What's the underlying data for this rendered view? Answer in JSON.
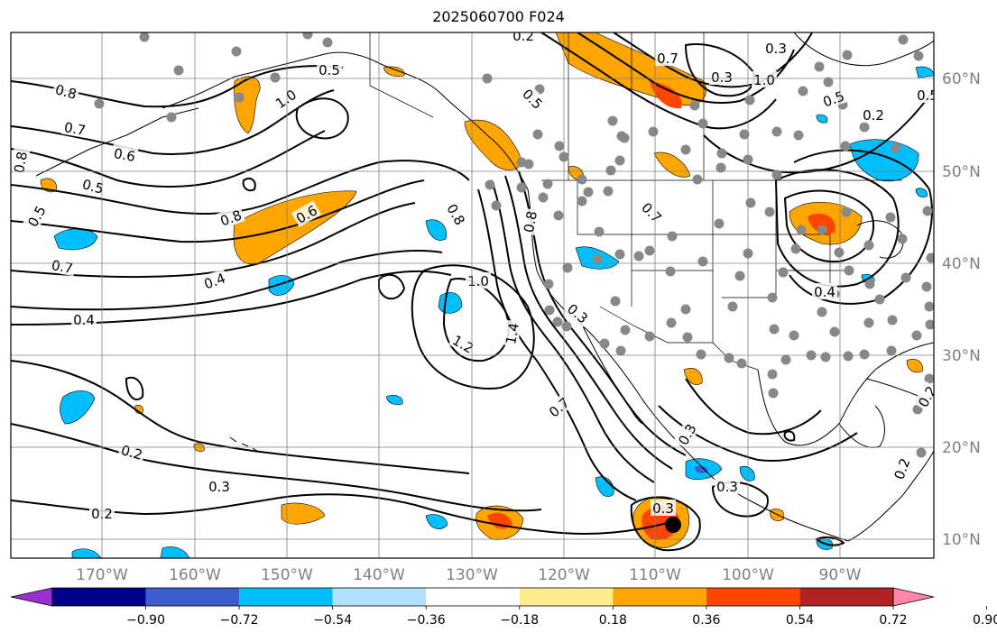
{
  "title": "2025060700 F024",
  "lon_labels": [
    "170°W",
    "160°W",
    "150°W",
    "140°W",
    "130°W",
    "120°W",
    "110°W",
    "100°W",
    "90°W"
  ],
  "lat_labels": [
    "60°N",
    "50°N",
    "40°N",
    "30°N",
    "20°N",
    "10°N"
  ],
  "colorbar": {
    "ticks": [
      "−0.90",
      "−0.72",
      "−0.54",
      "−0.36",
      "−0.18",
      "0.18",
      "0.36",
      "0.54",
      "0.72",
      "0.90"
    ],
    "colors": [
      "#9b30d0",
      "#00008b",
      "#3a5fcd",
      "#00bfff",
      "#b0e2ff",
      "#ffffff",
      "#ffec8b",
      "#ffa500",
      "#ff4500",
      "#b22222",
      "#ff88aa"
    ]
  },
  "contour_labels": [
    {
      "text": "0.5"
    },
    {
      "text": "0.8"
    },
    {
      "text": "1.0"
    },
    {
      "text": "0.7"
    },
    {
      "text": "0.6"
    },
    {
      "text": "0.5"
    },
    {
      "text": "0.8"
    },
    {
      "text": "0.5"
    },
    {
      "text": "0.7"
    },
    {
      "text": "0.8"
    },
    {
      "text": "0.6"
    },
    {
      "text": "0.4"
    },
    {
      "text": "0.4"
    },
    {
      "text": "0.8"
    },
    {
      "text": "0.2"
    },
    {
      "text": "0.5"
    },
    {
      "text": "1.0"
    },
    {
      "text": "1.2"
    },
    {
      "text": "1.4"
    },
    {
      "text": "0.3"
    },
    {
      "text": "0.7"
    },
    {
      "text": "0.3"
    },
    {
      "text": "0.2"
    },
    {
      "text": "0.3"
    },
    {
      "text": "0.2"
    },
    {
      "text": "0.8"
    },
    {
      "text": "0.7"
    },
    {
      "text": "0.3"
    },
    {
      "text": "1.0"
    },
    {
      "text": "0.5"
    },
    {
      "text": "0.2"
    },
    {
      "text": "0.3"
    },
    {
      "text": "0.5"
    },
    {
      "text": "0.4"
    },
    {
      "text": "0.3"
    },
    {
      "text": "0.3"
    },
    {
      "text": "0.2"
    },
    {
      "text": "0.2"
    },
    {
      "text": "0.7"
    }
  ]
}
